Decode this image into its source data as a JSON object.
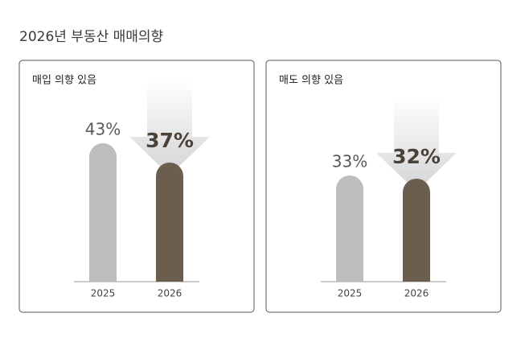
{
  "title": "2026년 부동산 매매의향",
  "chart_data": [
    {
      "type": "bar",
      "title": "매입 의향 있음",
      "categories": [
        "2025",
        "2026"
      ],
      "values": [
        43,
        37
      ],
      "value_labels": [
        "43%",
        "37%"
      ],
      "colors": [
        "#bdbdc0",
        "#6b5e4e"
      ],
      "ylim": [
        0,
        45
      ]
    },
    {
      "type": "bar",
      "title": "매도 의향 있음",
      "categories": [
        "2025",
        "2026"
      ],
      "values": [
        33,
        32
      ],
      "value_labels": [
        "33%",
        "32%"
      ],
      "colors": [
        "#bdbdc0",
        "#6b5e4e"
      ],
      "ylim": [
        0,
        45
      ]
    }
  ]
}
